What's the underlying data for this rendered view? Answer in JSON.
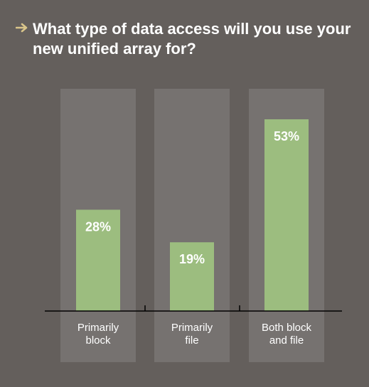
{
  "chart_data": {
    "type": "bar",
    "title": "What type of data access will you use your new unified array for?",
    "categories": [
      [
        "Primarily",
        "block"
      ],
      [
        "Primarily",
        "file"
      ],
      [
        "Both block",
        "and file"
      ]
    ],
    "values": [
      28,
      19,
      53
    ],
    "value_labels": [
      "28%",
      "19%",
      "53%"
    ],
    "ylim": [
      0,
      60
    ],
    "grid": false,
    "legend": "none"
  },
  "colors": {
    "background": "#645f5c",
    "column_backdrop": "#767270",
    "bar": "#9cbd7f",
    "accent_arrow": "#d9c58a",
    "axis": "#000000",
    "text": "#ffffff"
  },
  "icons": {
    "title_marker": "arrow-right-icon"
  }
}
